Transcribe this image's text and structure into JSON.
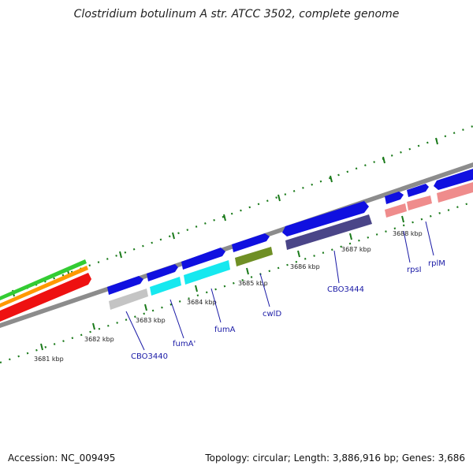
{
  "title": "Clostridium botulinum A str. ATCC 3502, complete genome",
  "footer": {
    "accession": "Accession: NC_009495",
    "summary": "Topology: circular; Length: 3,886,916 bp; Genes: 3,686"
  },
  "colors": {
    "backbone": "#8c8c8c",
    "tick": "#1a7a1a",
    "cds": "#1010e0",
    "label": "#1a1aa6",
    "track_green": "#33cc33",
    "track_orange": "#ff9900",
    "track_red": "#ee1111",
    "gray_feature": "#c4c4c4",
    "cyan_feature": "#16e8ef",
    "olive_feature": "#6f8f25",
    "purple_feature": "#4a4588",
    "pink_feature": "#ef8c8c"
  },
  "ticks": [
    "3681 kbp",
    "3682 kbp",
    "3683 kbp",
    "3684 kbp",
    "3685 kbp",
    "3686 kbp",
    "3687 kbp",
    "3688 kbp"
  ],
  "genes": [
    "CBO3440",
    "fumA'",
    "fumA",
    "cwlD",
    "CBO3444",
    "rpsI",
    "rplM"
  ]
}
